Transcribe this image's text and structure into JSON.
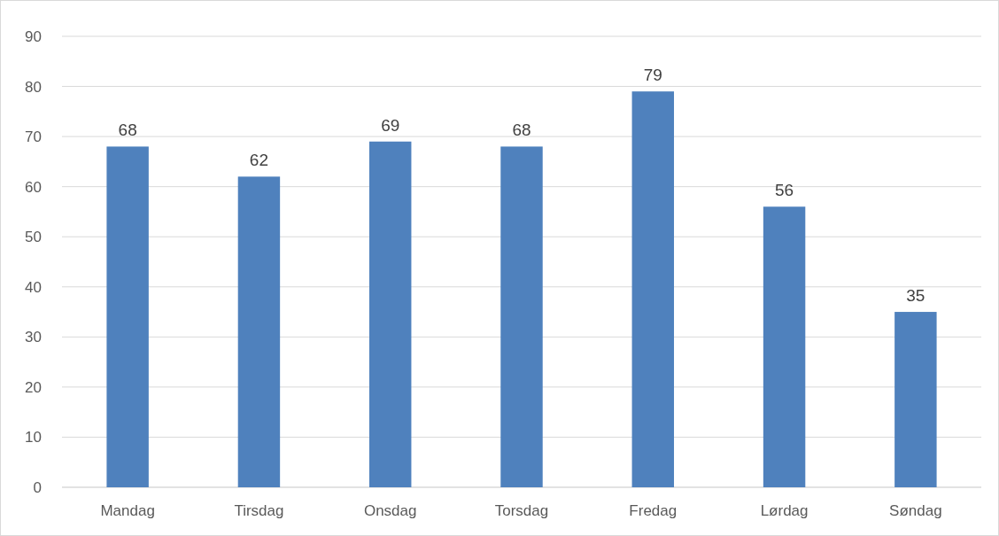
{
  "chart_data": {
    "type": "bar",
    "categories": [
      "Mandag",
      "Tirsdag",
      "Onsdag",
      "Torsdag",
      "Fredag",
      "Lørdag",
      "Søndag"
    ],
    "values": [
      68,
      62,
      69,
      68,
      79,
      56,
      35
    ],
    "color": "#4f81bd",
    "ylim": [
      0,
      90
    ],
    "yticks": [
      0,
      10,
      20,
      30,
      40,
      50,
      60,
      70,
      80,
      90
    ],
    "grid": "y",
    "data_labels": true
  }
}
